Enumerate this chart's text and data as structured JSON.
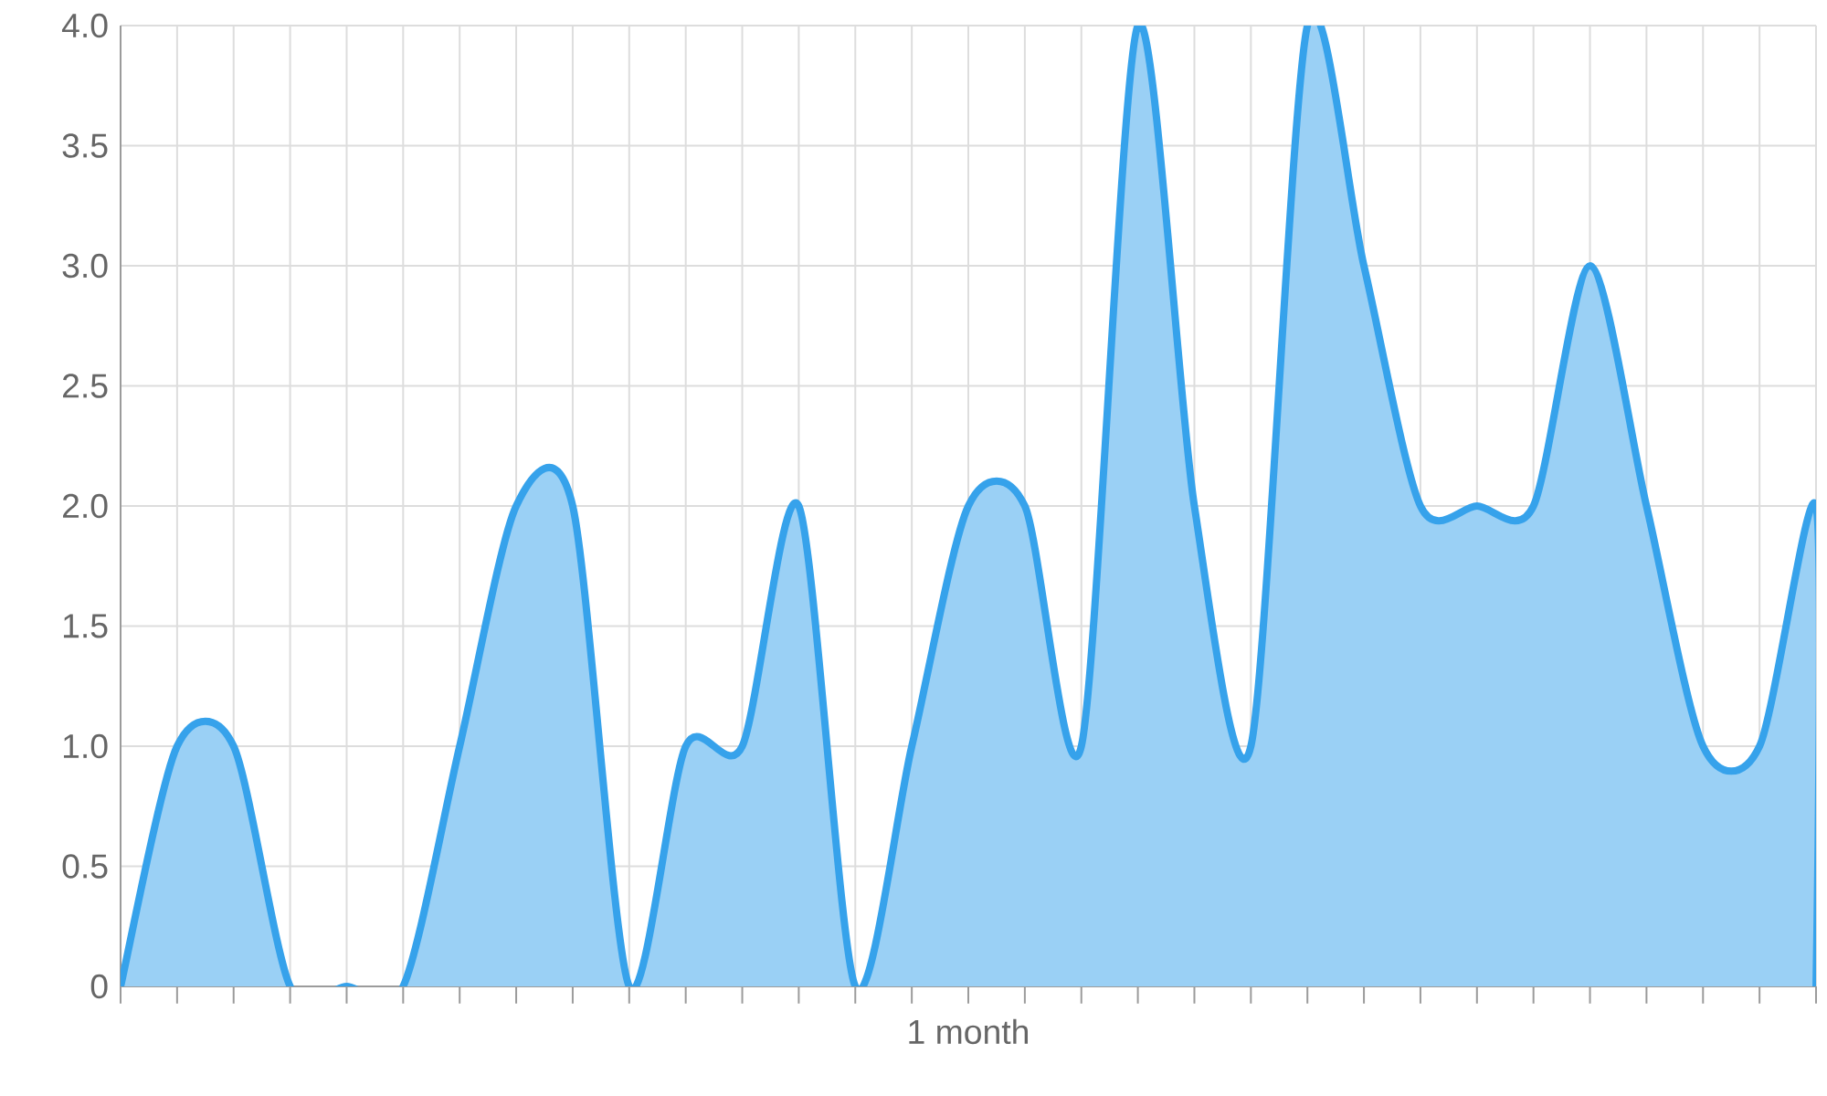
{
  "chart_data": {
    "type": "area",
    "xlabel": "1 month",
    "categories": [
      null,
      null,
      null,
      null,
      null,
      null,
      null,
      null,
      null,
      null,
      null,
      null,
      null,
      null,
      null,
      null,
      null,
      null,
      null,
      null,
      null,
      null,
      null,
      null,
      null,
      null,
      null,
      null,
      null,
      null,
      null
    ],
    "values": [
      0,
      1,
      1,
      0,
      0,
      0,
      1,
      2,
      2,
      0,
      1,
      1,
      2,
      0,
      1,
      2,
      2,
      1,
      4,
      2,
      1,
      4,
      3,
      2,
      2,
      2,
      3,
      2,
      1,
      1,
      2
    ],
    "color": "#36a2eb",
    "ylim": [
      0,
      4
    ],
    "yticks": [
      0,
      0.5,
      {
        "value": 1,
        "label": "1.0"
      },
      1.5,
      {
        "value": 2,
        "label": "2.0"
      },
      2.5,
      {
        "value": 3,
        "label": "3.0"
      },
      3.5,
      {
        "value": 4,
        "label": "4.0"
      }
    ],
    "grid": true,
    "tick_labels": "y"
  }
}
